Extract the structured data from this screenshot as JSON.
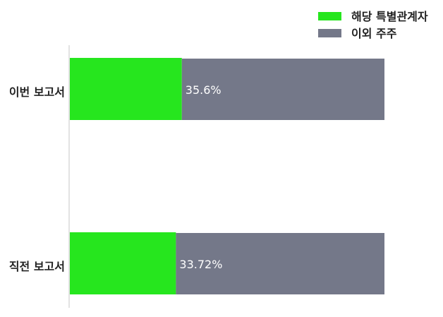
{
  "chart_data": {
    "type": "bar",
    "orientation": "horizontal",
    "stacked": true,
    "categories": [
      "이번 보고서",
      "직전 보고서"
    ],
    "series": [
      {
        "name": "해당 특별관계자",
        "color": "#26e61e",
        "values": [
          35.6,
          33.72
        ]
      },
      {
        "name": "이외 주주",
        "color": "#747889",
        "values": [
          64.4,
          66.28
        ]
      }
    ],
    "data_labels": [
      "35.6%",
      "33.72%"
    ],
    "xlim": [
      0,
      100
    ],
    "grid": false,
    "legend": "top-right"
  }
}
